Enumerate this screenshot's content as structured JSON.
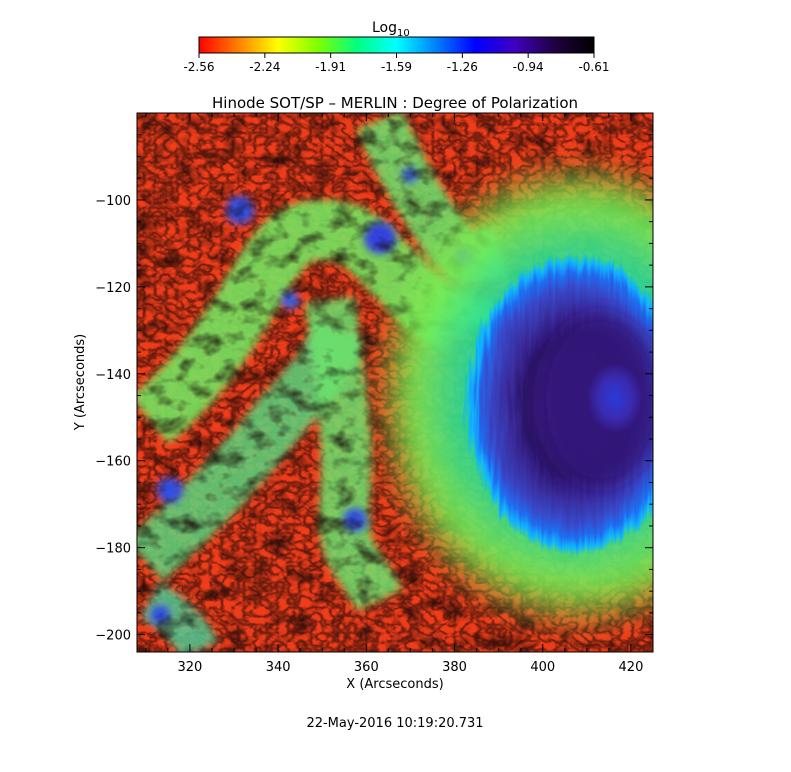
{
  "chart_data": {
    "type": "heatmap",
    "title": "Hinode SOT/SP – MERLIN : Degree of Polarization",
    "xlabel": "X (Arcseconds)",
    "ylabel": "Y (Arcseconds)",
    "xlim": [
      308,
      425
    ],
    "ylim": [
      -204,
      -80
    ],
    "xticks": [
      320,
      340,
      360,
      380,
      400,
      420
    ],
    "yticks": [
      -100,
      -120,
      -140,
      -160,
      -180,
      -200
    ],
    "colorbar": {
      "label_base": "Log",
      "label_sub": "10",
      "range": [
        -2.56,
        -0.61
      ],
      "ticks": [
        "-2.56",
        "-2.24",
        "-1.91",
        "-1.59",
        "-1.26",
        "-0.94",
        "-0.61"
      ],
      "colormap": [
        "#ff0000",
        "#ff8000",
        "#ffff00",
        "#80ff00",
        "#00ff80",
        "#00ffff",
        "#0080ff",
        "#0000ff",
        "#4000c0",
        "#200040",
        "#000000"
      ]
    },
    "features": {
      "sunspot_center": [
        412,
        -147
      ],
      "umbra_value": -0.9,
      "penumbra_value": -1.05,
      "quiet_value": -2.45,
      "network_value": -1.55
    }
  },
  "timestamp": "22-May-2016 10:19:20.731"
}
